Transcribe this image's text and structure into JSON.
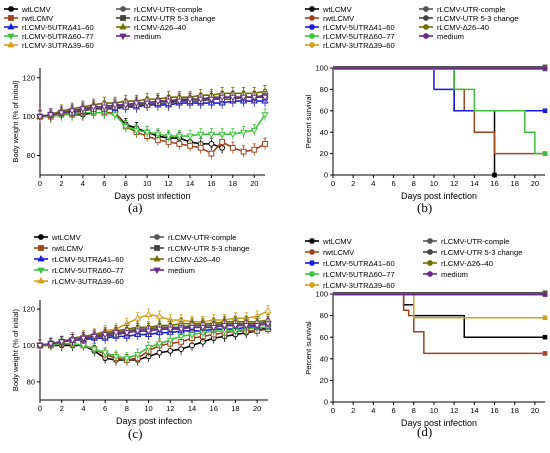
{
  "panels": [
    {
      "label": "(a)"
    },
    {
      "label": "(b)"
    },
    {
      "label": "(c)"
    },
    {
      "label": "(d)"
    }
  ],
  "chart_data": [
    {
      "type": "line",
      "panel": "(a)",
      "ylabel": "Body weight (% of initial)",
      "xlabel": "Days post infection",
      "xlim": [
        0,
        21
      ],
      "ylim": [
        70,
        125
      ],
      "xticks": [
        0,
        2,
        4,
        6,
        8,
        10,
        12,
        14,
        16,
        18,
        20
      ],
      "yticks": [
        80,
        100,
        120
      ],
      "x": [
        0,
        1,
        2,
        3,
        4,
        5,
        6,
        7,
        8,
        9,
        10,
        11,
        12,
        13,
        14,
        15,
        16,
        17,
        18,
        19,
        20,
        21
      ],
      "series": [
        {
          "name": "wtLCMV",
          "color": "#000000",
          "marker": "circle",
          "values": [
            100,
            100,
            101,
            101,
            101,
            102,
            102,
            102,
            96,
            94,
            92,
            90,
            89,
            89,
            87,
            86,
            86,
            84,
            null,
            null,
            null,
            null
          ]
        },
        {
          "name": "rwtLCMV",
          "color": "#a0441c",
          "marker": "square",
          "values": [
            100,
            100,
            101,
            101,
            102,
            102,
            102,
            102,
            95,
            92,
            90,
            88,
            87,
            86,
            85,
            84,
            81,
            87,
            84,
            82,
            83,
            86
          ]
        },
        {
          "name": "rLCMV-5UTRΔ41–60",
          "color": "#1a1adb",
          "marker": "triangle",
          "values": [
            100,
            101,
            102,
            103,
            103,
            104,
            104,
            104,
            105,
            105,
            106,
            106,
            106,
            107,
            107,
            107,
            107,
            107,
            108,
            108,
            108,
            108
          ]
        },
        {
          "name": "rLCMV-5UTRΔ60–77",
          "color": "#3ec33e",
          "marker": "triangle-down",
          "values": [
            100,
            100,
            101,
            101,
            102,
            102,
            102,
            101,
            95,
            93,
            92,
            91,
            90,
            90,
            90,
            91,
            91,
            91,
            91,
            92,
            93,
            101
          ]
        },
        {
          "name": "rLCMV-3UTRΔ39–60",
          "color": "#d4a020",
          "marker": "triangle",
          "values": [
            100,
            101,
            102,
            103,
            103,
            104,
            104,
            105,
            106,
            106,
            107,
            108,
            108,
            109,
            109,
            109,
            109,
            110,
            110,
            110,
            110,
            111
          ]
        },
        {
          "name": "rLCMV-UTR-comple",
          "color": "#555555",
          "marker": "circle",
          "values": [
            100,
            101,
            102,
            103,
            104,
            105,
            105,
            106,
            106,
            107,
            107,
            108,
            108,
            109,
            109,
            109,
            110,
            110,
            110,
            110,
            110,
            111
          ]
        },
        {
          "name": "rLCMV-UTR 5-3 change",
          "color": "#444444",
          "marker": "square",
          "values": [
            100,
            101,
            102,
            102,
            103,
            104,
            104,
            105,
            105,
            106,
            106,
            107,
            107,
            108,
            108,
            108,
            109,
            109,
            109,
            110,
            110,
            110
          ]
        },
        {
          "name": "rLCMV-Δ26–40",
          "color": "#707000",
          "marker": "triangle",
          "values": [
            100,
            101,
            103,
            104,
            105,
            106,
            107,
            107,
            108,
            108,
            109,
            109,
            110,
            110,
            110,
            111,
            111,
            112,
            112,
            112,
            112,
            113
          ]
        },
        {
          "name": "medium",
          "color": "#6a2a8a",
          "marker": "triangle-down",
          "values": [
            100,
            101,
            102,
            103,
            104,
            105,
            105,
            106,
            106,
            107,
            107,
            108,
            108,
            108,
            109,
            109,
            109,
            110,
            110,
            110,
            110,
            110
          ]
        }
      ]
    },
    {
      "type": "line",
      "panel": "(b)",
      "ylabel": "Percent survival",
      "xlabel": "Days post infection",
      "xlim": [
        0,
        21
      ],
      "ylim": [
        0,
        100
      ],
      "xticks": [
        0,
        2,
        4,
        6,
        8,
        10,
        12,
        14,
        16,
        18,
        20
      ],
      "yticks": [
        0,
        20,
        40,
        60,
        80,
        100
      ],
      "series": [
        {
          "name": "wtLCMV",
          "color": "#000000",
          "x": [
            0,
            12,
            14,
            16
          ],
          "values": [
            100,
            60,
            60,
            0
          ]
        },
        {
          "name": "rwtLCMV",
          "color": "#a0441c",
          "x": [
            0,
            12,
            13,
            14,
            16,
            21
          ],
          "values": [
            100,
            80,
            60,
            40,
            20,
            20
          ]
        },
        {
          "name": "rLCMV-5UTRΔ41–60",
          "color": "#1a1adb",
          "x": [
            0,
            10,
            12,
            21
          ],
          "values": [
            100,
            80,
            60,
            60
          ]
        },
        {
          "name": "rLCMV-5UTRΔ60–77",
          "color": "#3ec33e",
          "x": [
            0,
            12,
            14,
            19,
            20,
            21
          ],
          "values": [
            100,
            80,
            60,
            40,
            20,
            20
          ]
        },
        {
          "name": "rLCMV-3UTRΔ39–60",
          "color": "#d4a020",
          "x": [
            0,
            21
          ],
          "values": [
            100,
            100
          ]
        },
        {
          "name": "rLCMV-UTR-comple",
          "color": "#555555",
          "x": [
            0,
            21
          ],
          "values": [
            100,
            100
          ]
        },
        {
          "name": "rLCMV-UTR 5-3 change",
          "color": "#444444",
          "x": [
            0,
            21
          ],
          "values": [
            100,
            100
          ]
        },
        {
          "name": "rLCMV-Δ26–40",
          "color": "#707000",
          "x": [
            0,
            21
          ],
          "values": [
            100,
            100
          ]
        },
        {
          "name": "medium",
          "color": "#6a2a8a",
          "x": [
            0,
            21
          ],
          "values": [
            100,
            100
          ]
        }
      ]
    },
    {
      "type": "line",
      "panel": "(c)",
      "ylabel": "Body weight (% of initial)",
      "xlabel": "Days post infection",
      "xlim": [
        0,
        21
      ],
      "ylim": [
        70,
        125
      ],
      "xticks": [
        0,
        2,
        4,
        6,
        8,
        10,
        12,
        14,
        16,
        18,
        20
      ],
      "yticks": [
        80,
        100,
        120
      ],
      "x": [
        0,
        1,
        2,
        3,
        4,
        5,
        6,
        7,
        8,
        9,
        10,
        11,
        12,
        13,
        14,
        15,
        16,
        17,
        18,
        19,
        20,
        21
      ],
      "series": [
        {
          "name": "wtLCMV",
          "color": "#000000",
          "marker": "circle",
          "values": [
            100,
            100,
            100,
            100,
            100,
            97,
            93,
            92,
            92,
            92,
            94,
            96,
            97,
            98,
            100,
            102,
            104,
            105,
            106,
            107,
            108,
            110
          ]
        },
        {
          "name": "rwtLCMV",
          "color": "#a0441c",
          "marker": "square",
          "values": [
            100,
            100,
            101,
            101,
            100,
            98,
            95,
            93,
            92,
            93,
            97,
            100,
            101,
            102,
            104,
            105,
            106,
            107,
            108,
            108,
            108,
            109
          ]
        },
        {
          "name": "rLCMV-5UTRΔ41–60",
          "color": "#1a1adb",
          "marker": "triangle",
          "values": [
            100,
            101,
            102,
            103,
            103,
            104,
            104,
            105,
            105,
            106,
            106,
            107,
            107,
            108,
            108,
            108,
            109,
            109,
            109,
            110,
            110,
            110
          ]
        },
        {
          "name": "rLCMV-5UTRΔ60–77",
          "color": "#3ec33e",
          "marker": "triangle-down",
          "values": [
            100,
            100,
            101,
            101,
            100,
            98,
            96,
            94,
            93,
            95,
            99,
            101,
            103,
            105,
            106,
            107,
            108,
            108,
            108,
            109,
            110,
            110
          ]
        },
        {
          "name": "rLCMV-3UTRΔ39–60",
          "color": "#d4a020",
          "marker": "triangle",
          "values": [
            100,
            101,
            102,
            103,
            104,
            106,
            108,
            109,
            112,
            115,
            117,
            116,
            114,
            114,
            113,
            113,
            114,
            114,
            115,
            115,
            116,
            119
          ]
        },
        {
          "name": "rLCMV-UTR-comple",
          "color": "#555555",
          "marker": "circle",
          "values": [
            100,
            101,
            102,
            103,
            104,
            105,
            106,
            107,
            108,
            109,
            109,
            110,
            110,
            110,
            111,
            111,
            111,
            112,
            112,
            112,
            112,
            113
          ]
        },
        {
          "name": "rLCMV-UTR 5-3 change",
          "color": "#444444",
          "marker": "square",
          "values": [
            100,
            101,
            102,
            103,
            104,
            105,
            105,
            106,
            107,
            108,
            108,
            109,
            109,
            110,
            110,
            110,
            110,
            111,
            111,
            111,
            111,
            112
          ]
        },
        {
          "name": "rLCMV-Δ26–40",
          "color": "#707000",
          "marker": "triangle",
          "values": [
            100,
            101,
            102,
            104,
            105,
            106,
            107,
            108,
            109,
            110,
            110,
            111,
            111,
            112,
            112,
            112,
            112,
            113,
            113,
            113,
            113,
            114
          ]
        },
        {
          "name": "medium",
          "color": "#6a2a8a",
          "marker": "triangle-down",
          "values": [
            100,
            101,
            102,
            103,
            104,
            105,
            106,
            107,
            107,
            108,
            108,
            109,
            109,
            109,
            110,
            110,
            110,
            111,
            111,
            111,
            111,
            112
          ]
        }
      ]
    },
    {
      "type": "line",
      "panel": "(d)",
      "ylabel": "Percent survival",
      "xlabel": "Days post infection",
      "xlim": [
        0,
        21
      ],
      "ylim": [
        0,
        100
      ],
      "xticks": [
        0,
        2,
        4,
        6,
        8,
        10,
        12,
        14,
        16,
        18,
        20
      ],
      "yticks": [
        0,
        20,
        40,
        60,
        80,
        100
      ],
      "series": [
        {
          "name": "wtLCMV",
          "color": "#000000",
          "x": [
            0,
            7,
            8,
            13,
            21
          ],
          "values": [
            100,
            90,
            80,
            60,
            60
          ]
        },
        {
          "name": "rwtLCMV",
          "color": "#a0441c",
          "x": [
            0,
            7,
            7.5,
            8,
            9,
            21
          ],
          "values": [
            100,
            85,
            80,
            65,
            45,
            45
          ]
        },
        {
          "name": "rLCMV-5UTRΔ41–60",
          "color": "#1a1adb",
          "x": [
            0,
            21
          ],
          "values": [
            100,
            100
          ]
        },
        {
          "name": "rLCMV-5UTRΔ60–77",
          "color": "#3ec33e",
          "x": [
            0,
            21
          ],
          "values": [
            100,
            100
          ]
        },
        {
          "name": "rLCMV-3UTRΔ39–60",
          "color": "#d4a020",
          "x": [
            0,
            8,
            21
          ],
          "values": [
            100,
            78,
            78
          ]
        },
        {
          "name": "rLCMV-UTR-comple",
          "color": "#555555",
          "x": [
            0,
            21
          ],
          "values": [
            100,
            100
          ]
        },
        {
          "name": "rLCMV-UTR 5-3 change",
          "color": "#444444",
          "x": [
            0,
            21
          ],
          "values": [
            100,
            100
          ]
        },
        {
          "name": "rLCMV-Δ26–40",
          "color": "#707000",
          "x": [
            0,
            21
          ],
          "values": [
            100,
            100
          ]
        },
        {
          "name": "medium",
          "color": "#6a2a8a",
          "x": [
            0,
            21
          ],
          "values": [
            100,
            100
          ]
        }
      ]
    }
  ]
}
